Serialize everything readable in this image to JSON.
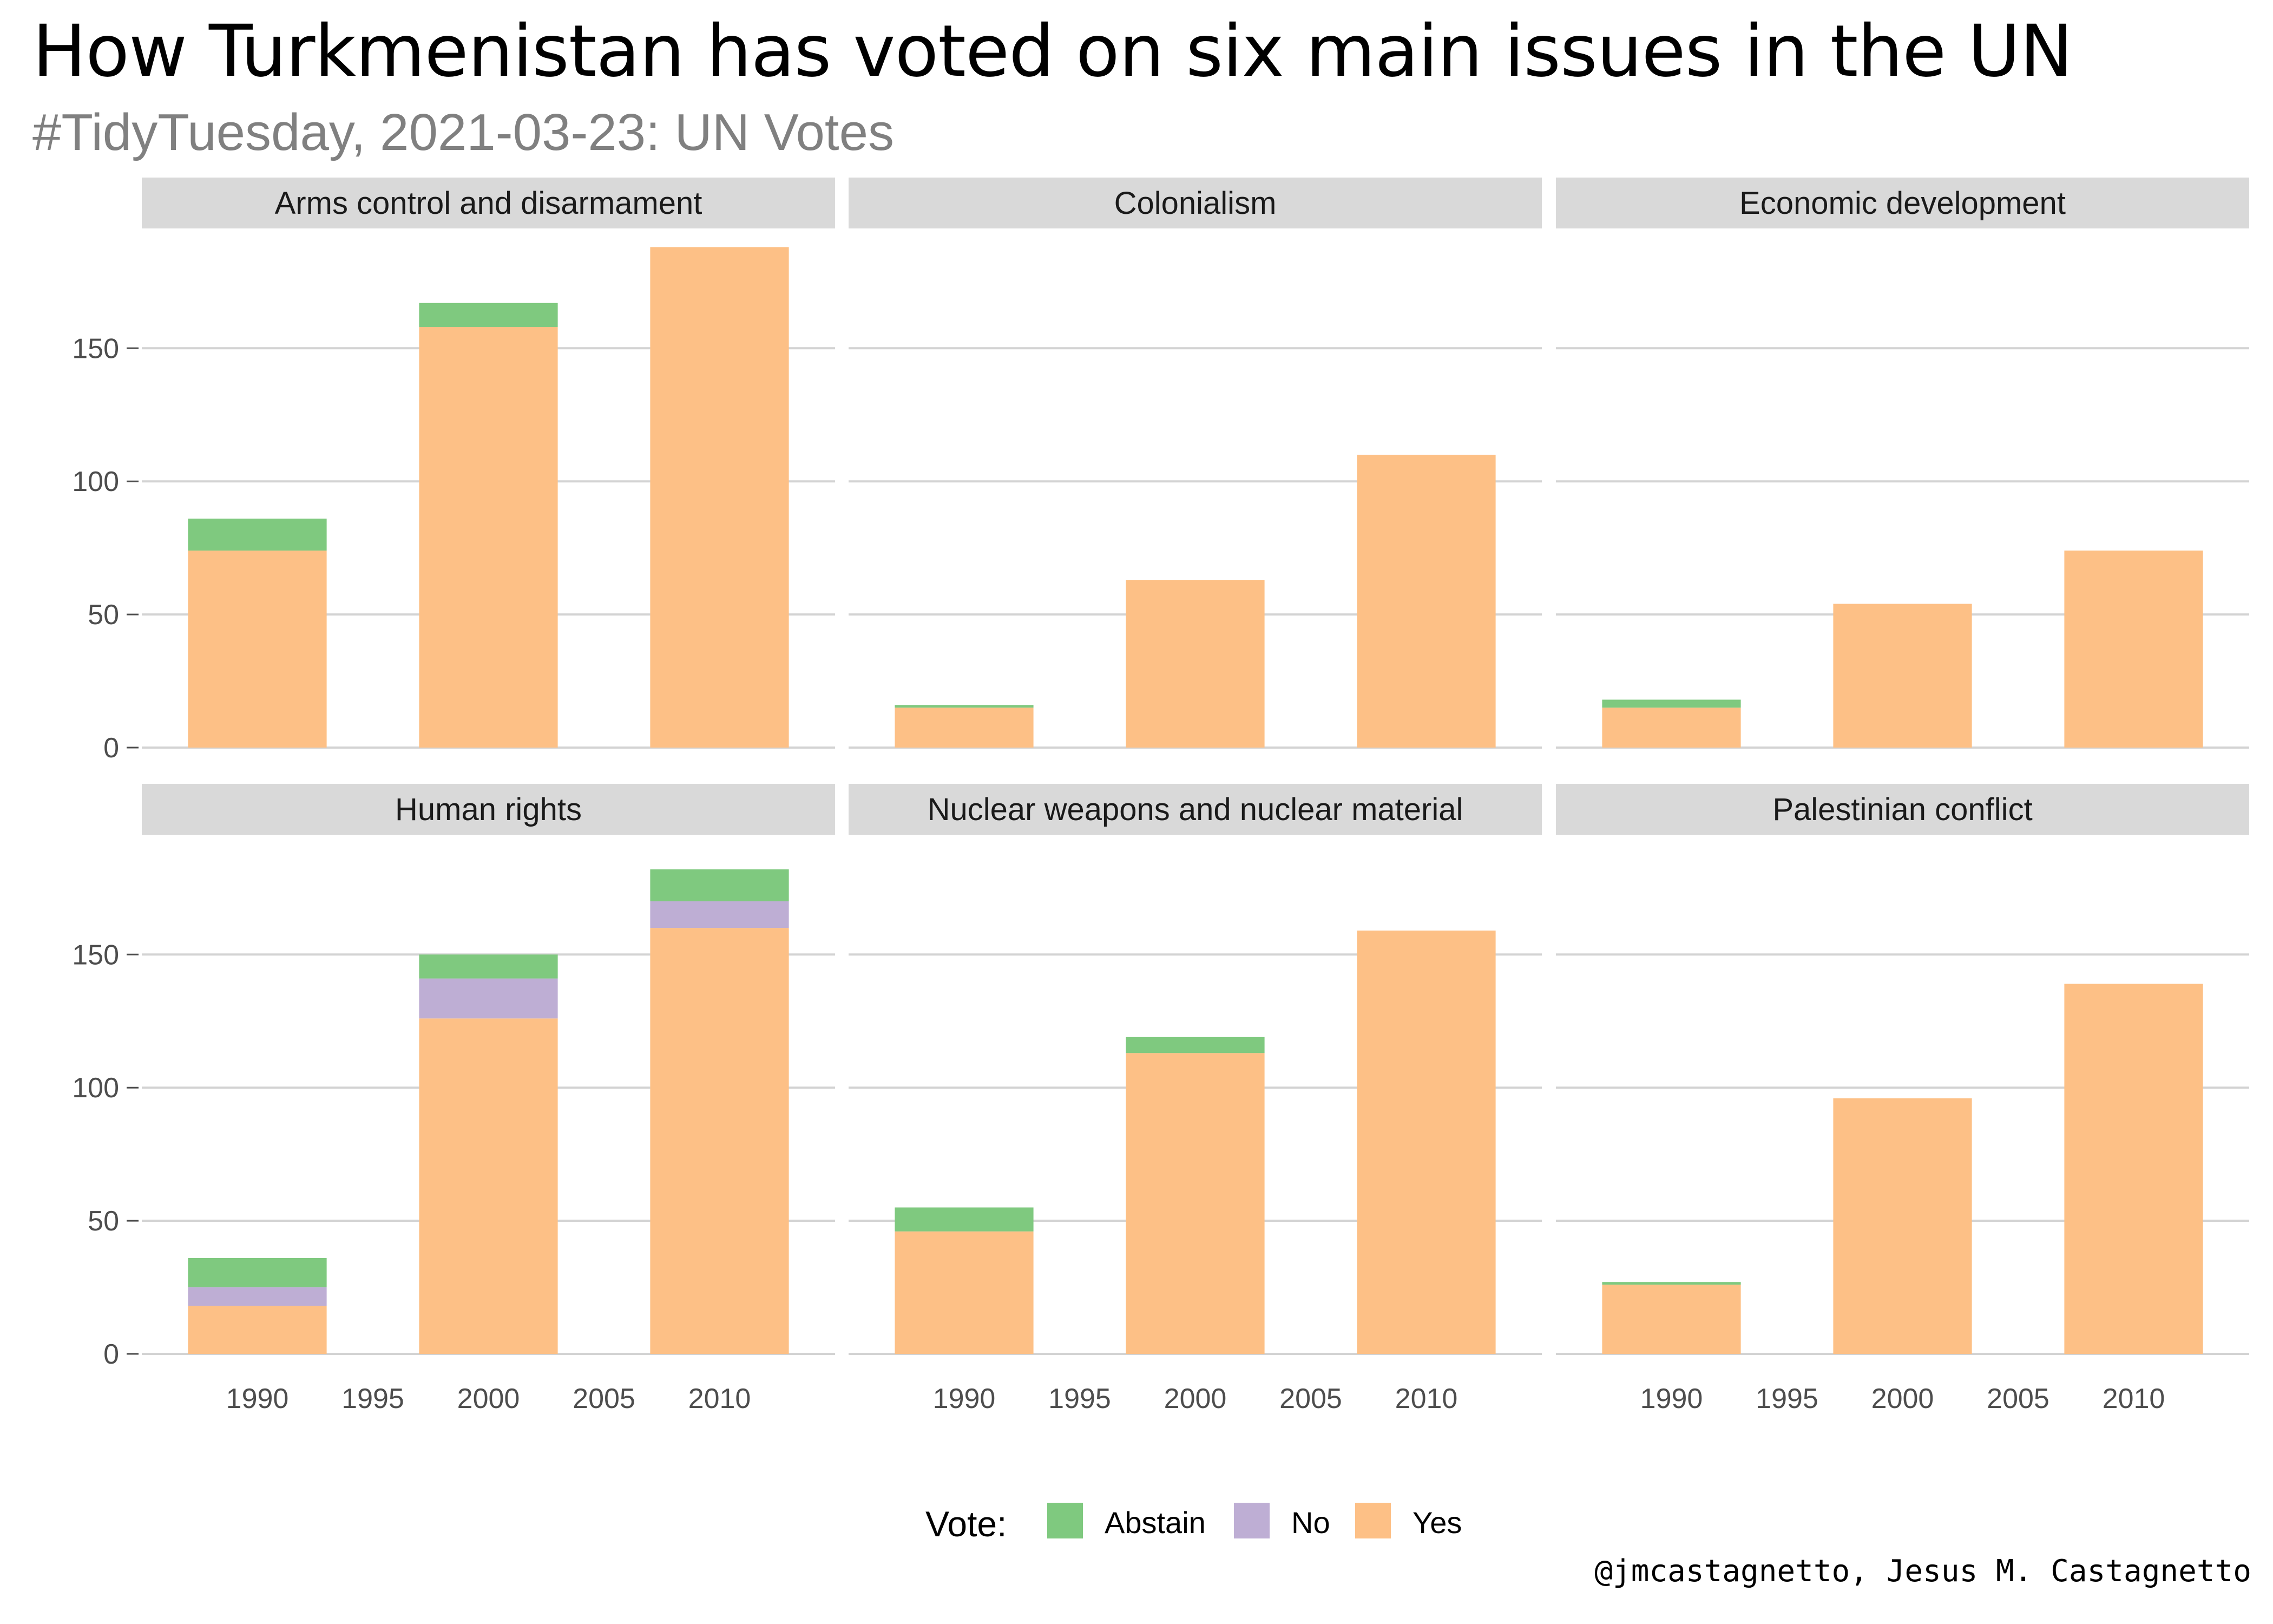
{
  "title": "How Turkmenistan has voted on six main issues in the UN",
  "subtitle": "#TidyTuesday, 2021-03-23: UN Votes",
  "caption": "@jmcastagnetto, Jesus M. Castagnetto",
  "legend": {
    "title": "Vote:",
    "items": [
      {
        "label": "Abstain",
        "color": "#7fc97f"
      },
      {
        "label": "No",
        "color": "#beaed4"
      },
      {
        "label": "Yes",
        "color": "#fdc086"
      }
    ]
  },
  "chart_data": {
    "type": "bar",
    "stacked": true,
    "faceted": true,
    "x_ticks": [
      1990,
      1995,
      2000,
      2005,
      2010
    ],
    "y_ticks": [
      0,
      50,
      100,
      150
    ],
    "ylim": [
      0,
      195
    ],
    "xlim": [
      1985,
      2015
    ],
    "bar_x": [
      1990,
      2000,
      2010
    ],
    "grid": "horizontal",
    "legend_position": "bottom",
    "stack_order": [
      "Yes",
      "No",
      "Abstain"
    ],
    "panels": [
      {
        "name": "Arms control and disarmament",
        "bars": [
          {
            "x": 1990,
            "Yes": 74,
            "No": 0,
            "Abstain": 12
          },
          {
            "x": 2000,
            "Yes": 158,
            "No": 0,
            "Abstain": 9
          },
          {
            "x": 2010,
            "Yes": 188,
            "No": 0,
            "Abstain": 0
          }
        ]
      },
      {
        "name": "Colonialism",
        "bars": [
          {
            "x": 1990,
            "Yes": 15,
            "No": 0,
            "Abstain": 1
          },
          {
            "x": 2000,
            "Yes": 63,
            "No": 0,
            "Abstain": 0
          },
          {
            "x": 2010,
            "Yes": 110,
            "No": 0,
            "Abstain": 0
          }
        ]
      },
      {
        "name": "Economic development",
        "bars": [
          {
            "x": 1990,
            "Yes": 15,
            "No": 0,
            "Abstain": 3
          },
          {
            "x": 2000,
            "Yes": 54,
            "No": 0,
            "Abstain": 0
          },
          {
            "x": 2010,
            "Yes": 74,
            "No": 0,
            "Abstain": 0
          }
        ]
      },
      {
        "name": "Human rights",
        "bars": [
          {
            "x": 1990,
            "Yes": 18,
            "No": 7,
            "Abstain": 11
          },
          {
            "x": 2000,
            "Yes": 126,
            "No": 15,
            "Abstain": 9
          },
          {
            "x": 2010,
            "Yes": 160,
            "No": 10,
            "Abstain": 12
          }
        ]
      },
      {
        "name": "Nuclear weapons and nuclear material",
        "bars": [
          {
            "x": 1990,
            "Yes": 46,
            "No": 0,
            "Abstain": 9
          },
          {
            "x": 2000,
            "Yes": 113,
            "No": 0,
            "Abstain": 6
          },
          {
            "x": 2010,
            "Yes": 159,
            "No": 0,
            "Abstain": 0
          }
        ]
      },
      {
        "name": "Palestinian conflict",
        "bars": [
          {
            "x": 1990,
            "Yes": 26,
            "No": 0,
            "Abstain": 1
          },
          {
            "x": 2000,
            "Yes": 96,
            "No": 0,
            "Abstain": 0
          },
          {
            "x": 2010,
            "Yes": 139,
            "No": 0,
            "Abstain": 0
          }
        ]
      }
    ]
  }
}
